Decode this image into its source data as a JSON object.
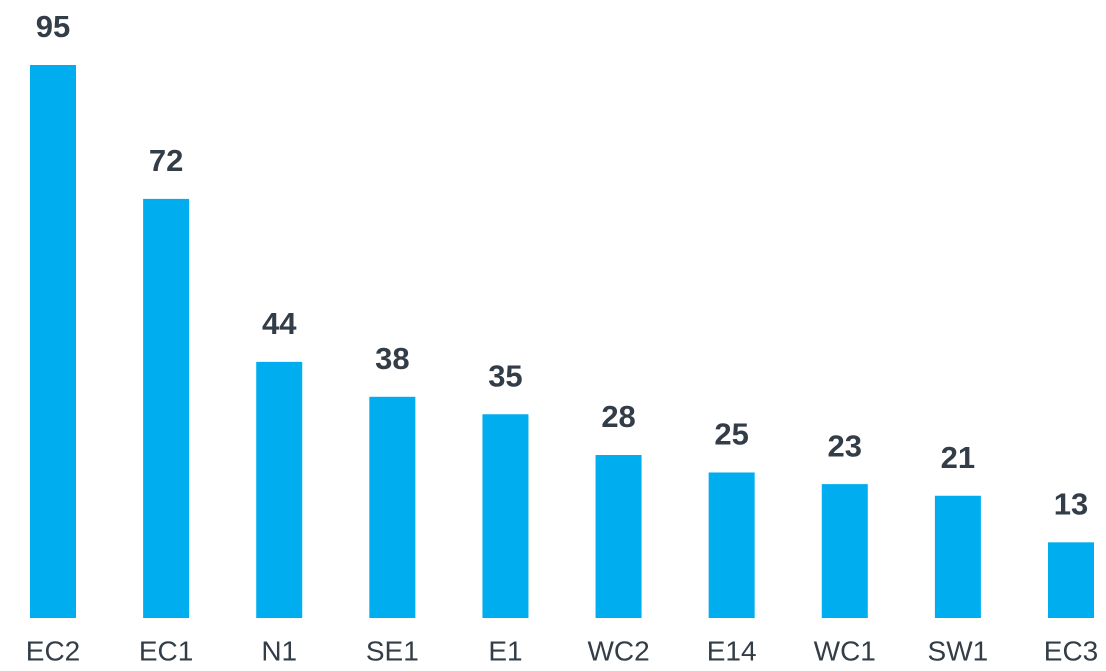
{
  "chart_data": {
    "type": "bar",
    "categories": [
      "EC2",
      "EC1",
      "N1",
      "SE1",
      "E1",
      "WC2",
      "E14",
      "WC1",
      "SW1",
      "EC3"
    ],
    "values": [
      95,
      72,
      44,
      38,
      35,
      28,
      25,
      23,
      21,
      13
    ],
    "color": "#00aeef"
  }
}
